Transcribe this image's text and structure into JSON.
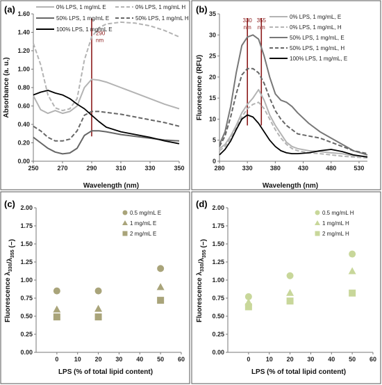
{
  "chart_data": [
    {
      "panel": "(a)",
      "type": "line",
      "xlabel": "Wavelength (nm)",
      "ylabel": "Absorbance (a. u.)",
      "xlim": [
        250,
        350
      ],
      "ylim": [
        0,
        1.6
      ],
      "xticks": [
        "250",
        "270",
        "290",
        "310",
        "330",
        "350"
      ],
      "yticks": [
        "0.00",
        "0.20",
        "0.40",
        "0.60",
        "0.80",
        "1.00",
        "1.20",
        "1.40",
        "1.60"
      ],
      "legend_position": "top",
      "annotations": [
        {
          "text": "290",
          "x": 290
        },
        {
          "text": "nm",
          "x": 290
        }
      ],
      "series": [
        {
          "name": "0% LPS, 1 mg/mL E",
          "color": "#b3b3b3",
          "dash": "solid",
          "x": [
            250,
            255,
            260,
            265,
            270,
            275,
            280,
            285,
            290,
            295,
            300,
            310,
            320,
            330,
            340,
            350
          ],
          "y": [
            0.71,
            0.56,
            0.52,
            0.55,
            0.52,
            0.54,
            0.6,
            0.8,
            0.89,
            0.88,
            0.86,
            0.8,
            0.74,
            0.68,
            0.62,
            0.57
          ]
        },
        {
          "name": "0% LPS, 1 mg/mL  H",
          "color": "#b3b3b3",
          "dash": "dashed",
          "x": [
            250,
            255,
            260,
            265,
            270,
            275,
            280,
            285,
            290,
            295,
            300,
            310,
            320,
            330,
            340,
            350
          ],
          "y": [
            1.28,
            1.05,
            0.72,
            0.58,
            0.55,
            0.57,
            0.68,
            1.1,
            1.35,
            1.45,
            1.49,
            1.51,
            1.5,
            1.47,
            1.42,
            1.35
          ]
        },
        {
          "name": "50% LPS, 1 mg/mL E",
          "color": "#666666",
          "dash": "solid",
          "x": [
            250,
            255,
            260,
            265,
            270,
            275,
            280,
            285,
            290,
            295,
            300,
            310,
            320,
            330,
            340,
            350
          ],
          "y": [
            0.26,
            0.2,
            0.14,
            0.1,
            0.08,
            0.09,
            0.14,
            0.28,
            0.33,
            0.33,
            0.32,
            0.29,
            0.27,
            0.25,
            0.23,
            0.22
          ]
        },
        {
          "name": "50% LPS, 1 mg/mL H",
          "color": "#666666",
          "dash": "dashed",
          "x": [
            250,
            255,
            260,
            265,
            270,
            275,
            280,
            285,
            290,
            295,
            300,
            310,
            320,
            330,
            340,
            350
          ],
          "y": [
            0.38,
            0.33,
            0.26,
            0.22,
            0.22,
            0.24,
            0.33,
            0.5,
            0.54,
            0.54,
            0.53,
            0.51,
            0.48,
            0.45,
            0.42,
            0.38
          ]
        },
        {
          "name": "100% LPS, 1 mg/mL E",
          "color": "#000000",
          "dash": "solid",
          "x": [
            250,
            255,
            260,
            265,
            270,
            275,
            280,
            285,
            290,
            295,
            300,
            310,
            320,
            330,
            340,
            350
          ],
          "y": [
            0.72,
            0.75,
            0.77,
            0.74,
            0.72,
            0.68,
            0.62,
            0.57,
            0.5,
            0.43,
            0.37,
            0.32,
            0.29,
            0.26,
            0.22,
            0.19
          ]
        }
      ]
    },
    {
      "panel": "(b)",
      "type": "line",
      "xlabel": "Wavelength (nm)",
      "ylabel": "Fluorescence (RFU)",
      "xlim": [
        280,
        545
      ],
      "ylim": [
        0,
        35
      ],
      "xticks": [
        "280",
        "330",
        "380",
        "430",
        "480",
        "530"
      ],
      "yticks": [
        "0",
        "5",
        "10",
        "15",
        "20",
        "25",
        "30",
        "35"
      ],
      "legend_position": "top-right",
      "annotations": [
        {
          "text": "330",
          "x": 330
        },
        {
          "text": "nm",
          "x": 330
        },
        {
          "text": "355",
          "x": 355
        },
        {
          "text": "nm",
          "x": 355
        }
      ],
      "series": [
        {
          "name": "0% LPS, 1 mg/mL, E",
          "color": "#b3b3b3",
          "dash": "solid",
          "x": [
            280,
            290,
            300,
            310,
            320,
            330,
            340,
            350,
            360,
            370,
            380,
            390,
            400,
            410,
            420,
            440,
            460,
            480,
            500,
            520,
            545
          ],
          "y": [
            3.0,
            4.0,
            6.0,
            8.5,
            11.5,
            13.5,
            15.0,
            17.0,
            14.5,
            11.0,
            8.5,
            6.5,
            4.5,
            3.5,
            3.0,
            2.5,
            2.3,
            2.0,
            1.8,
            1.3,
            1.0
          ]
        },
        {
          "name": "0% LPS, 1 mg/mL, H",
          "color": "#b3b3b3",
          "dash": "dashed",
          "x": [
            280,
            290,
            300,
            310,
            320,
            330,
            340,
            350,
            360,
            370,
            380,
            390,
            400,
            410,
            420,
            440,
            460,
            480,
            500,
            520,
            545
          ],
          "y": [
            2.5,
            3.5,
            5.5,
            8.0,
            10.5,
            12.5,
            13.5,
            14.0,
            12.5,
            10.0,
            7.5,
            5.5,
            4.0,
            3.0,
            2.5,
            2.0,
            1.8,
            1.5,
            1.2,
            1.0,
            0.8
          ]
        },
        {
          "name": "50% LPS, 1 mg/mL, E",
          "color": "#777777",
          "dash": "solid",
          "x": [
            280,
            290,
            300,
            310,
            320,
            330,
            340,
            350,
            360,
            370,
            380,
            390,
            400,
            410,
            420,
            440,
            460,
            480,
            500,
            520,
            545
          ],
          "y": [
            4.0,
            7.0,
            13.0,
            21.0,
            27.5,
            29.5,
            30.0,
            29.0,
            25.0,
            20.0,
            16.0,
            14.5,
            14.0,
            13.0,
            11.5,
            9.0,
            7.0,
            5.5,
            4.0,
            2.5,
            1.5
          ]
        },
        {
          "name": "50% LPS, 1 mg/mL, H",
          "color": "#666666",
          "dash": "dashed",
          "x": [
            280,
            290,
            300,
            310,
            320,
            330,
            340,
            350,
            360,
            370,
            380,
            390,
            400,
            410,
            420,
            440,
            460,
            480,
            500,
            520,
            545
          ],
          "y": [
            3.5,
            6.0,
            10.5,
            16.0,
            20.5,
            22.0,
            22.0,
            21.0,
            18.5,
            15.0,
            12.0,
            10.0,
            8.5,
            7.5,
            6.5,
            6.0,
            5.5,
            4.5,
            3.5,
            2.5,
            1.8
          ]
        },
        {
          "name": "100% LPS, 1 mg/mL, E",
          "color": "#000000",
          "dash": "solid",
          "x": [
            280,
            290,
            300,
            310,
            320,
            330,
            340,
            350,
            360,
            370,
            380,
            390,
            400,
            410,
            420,
            440,
            460,
            480,
            500,
            520,
            545
          ],
          "y": [
            1.5,
            2.8,
            4.8,
            7.5,
            10.0,
            11.0,
            10.5,
            9.0,
            7.0,
            5.0,
            3.5,
            2.5,
            2.0,
            1.8,
            1.8,
            2.0,
            2.5,
            2.8,
            2.3,
            1.5,
            1.0
          ]
        }
      ]
    },
    {
      "panel": "(c)",
      "type": "scatter",
      "xlabel": "LPS  (% of total lipid content)",
      "ylabel": "Fluorescence λ330/λ355 (−)",
      "xlim": [
        -10,
        60
      ],
      "ylim": [
        0,
        2.0
      ],
      "xticks": [
        "0",
        "10",
        "20",
        "30",
        "40",
        "50",
        "60"
      ],
      "yticks": [
        "0.00",
        "0.25",
        "0.50",
        "0.75",
        "1.00",
        "1.25",
        "1.50",
        "1.75",
        "2.00"
      ],
      "legend_position": "top-right",
      "series": [
        {
          "name": "0.5 mg/mL E",
          "marker": "circle",
          "color": "#a9a47a",
          "x": [
            0,
            20,
            50
          ],
          "y": [
            0.85,
            0.85,
            1.16
          ]
        },
        {
          "name": "1 mg/mL E",
          "marker": "triangle",
          "color": "#a9a47a",
          "x": [
            0,
            20,
            50
          ],
          "y": [
            0.59,
            0.6,
            0.9
          ]
        },
        {
          "name": "2 mg/mL E",
          "marker": "square",
          "color": "#a9a47a",
          "x": [
            0,
            20,
            50
          ],
          "y": [
            0.49,
            0.49,
            0.72
          ]
        }
      ]
    },
    {
      "panel": "(d)",
      "type": "scatter",
      "xlabel": "LPS  (% of total lipid content)",
      "ylabel": "Fluorescence λ330/λ355 (−)",
      "xlim": [
        -10,
        60
      ],
      "ylim": [
        0,
        2.0
      ],
      "xticks": [
        "0",
        "10",
        "20",
        "30",
        "40",
        "50",
        "60"
      ],
      "yticks": [
        "0.00",
        "0.25",
        "0.50",
        "0.75",
        "1.00",
        "1.25",
        "1.50",
        "1.75",
        "2.00"
      ],
      "legend_position": "top-right",
      "series": [
        {
          "name": "0.5 mg/mL H",
          "marker": "circle",
          "color": "#c8d79a",
          "x": [
            0,
            20,
            50
          ],
          "y": [
            0.77,
            1.06,
            1.36
          ]
        },
        {
          "name": "1 mg/mL H",
          "marker": "triangle",
          "color": "#c8d79a",
          "x": [
            0,
            20,
            50
          ],
          "y": [
            0.69,
            0.82,
            1.12
          ]
        },
        {
          "name": "2 mg/mL H",
          "marker": "square",
          "color": "#c8d79a",
          "x": [
            0,
            20,
            50
          ],
          "y": [
            0.63,
            0.71,
            0.82
          ]
        }
      ]
    }
  ]
}
